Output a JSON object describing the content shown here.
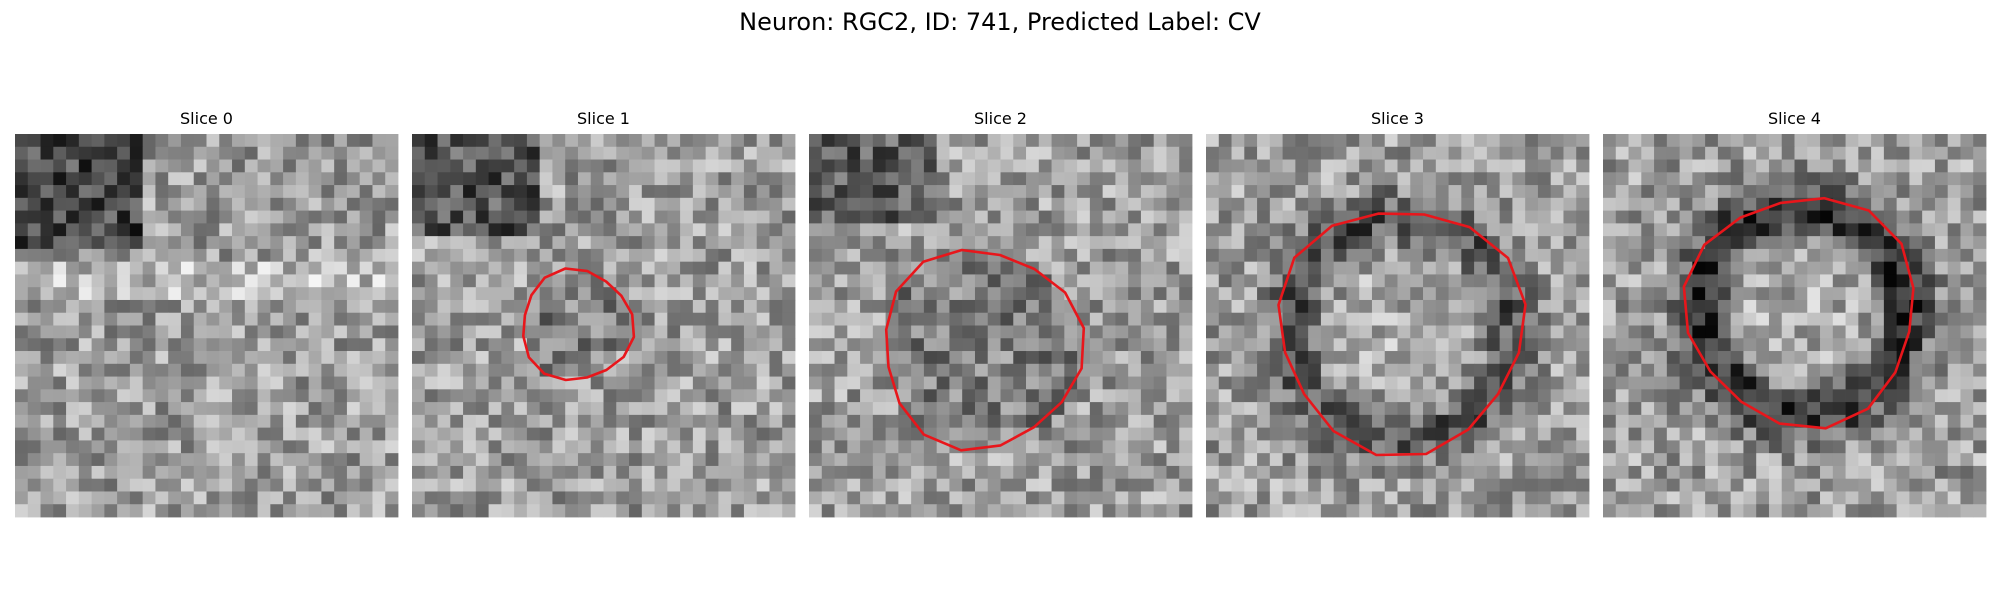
{
  "title": "Neuron: RGC2, ID: 741, Predicted Label: CV",
  "panels": [
    {
      "title": "Slice 0"
    },
    {
      "title": "Slice 1"
    },
    {
      "title": "Slice 2"
    },
    {
      "title": "Slice 3"
    },
    {
      "title": "Slice 4"
    }
  ]
}
